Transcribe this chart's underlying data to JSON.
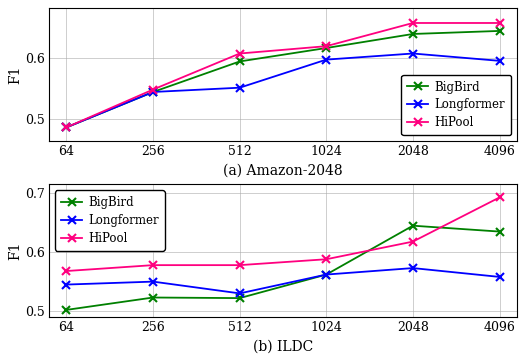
{
  "x_vals": [
    64,
    256,
    512,
    1024,
    2048,
    4096
  ],
  "x_labels": [
    "64",
    "256",
    "512",
    "1024",
    "2048",
    "4096"
  ],
  "amazon_bigbird": [
    0.487,
    0.545,
    0.595,
    0.617,
    0.64,
    0.645
  ],
  "amazon_longformer": [
    0.487,
    0.545,
    0.552,
    0.598,
    0.608,
    0.596
  ],
  "amazon_hipool": [
    0.487,
    0.549,
    0.608,
    0.62,
    0.658,
    0.658
  ],
  "ildc_bigbird": [
    0.502,
    0.523,
    0.522,
    0.562,
    0.645,
    0.635
  ],
  "ildc_longformer": [
    0.545,
    0.55,
    0.53,
    0.562,
    0.573,
    0.558
  ],
  "ildc_hipool": [
    0.568,
    0.578,
    0.578,
    0.588,
    0.618,
    0.693
  ],
  "color_bigbird": "#008000",
  "color_longformer": "#0000FF",
  "color_hipool": "#FF007F",
  "title_a": "(a) Amazon-2048",
  "title_b": "(b) ILDC",
  "ylabel": "F1",
  "amazon_ylim": [
    0.465,
    0.682
  ],
  "amazon_yticks": [
    0.5,
    0.6
  ],
  "ildc_ylim": [
    0.49,
    0.715
  ],
  "ildc_yticks": [
    0.5,
    0.6,
    0.7
  ],
  "legend_labels": [
    "BigBird",
    "Longformer",
    "HiPool"
  ],
  "marker": "x",
  "linewidth": 1.3,
  "markersize": 6,
  "markeredgewidth": 1.5
}
